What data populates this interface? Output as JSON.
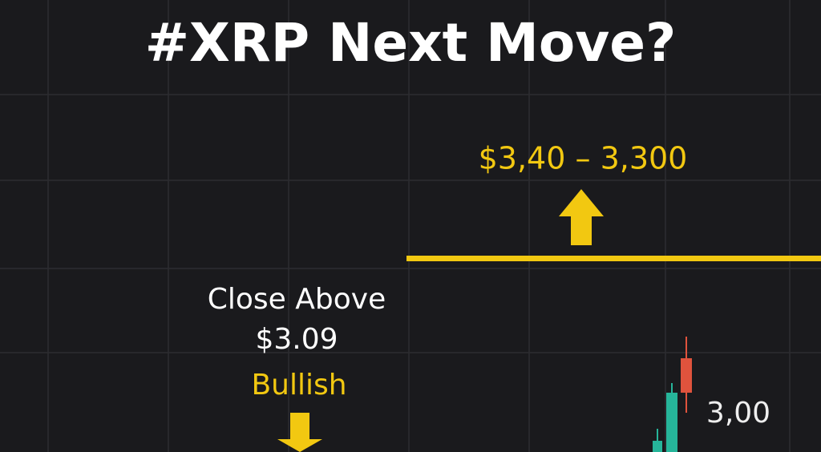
{
  "header": {
    "title": "#XRP Next Move?"
  },
  "target": {
    "label": "$3,40 – 3,300"
  },
  "condition": {
    "line1": "Close Above",
    "line2": "$3.09",
    "signal": "Bullish"
  },
  "price_label": "3,00"
}
